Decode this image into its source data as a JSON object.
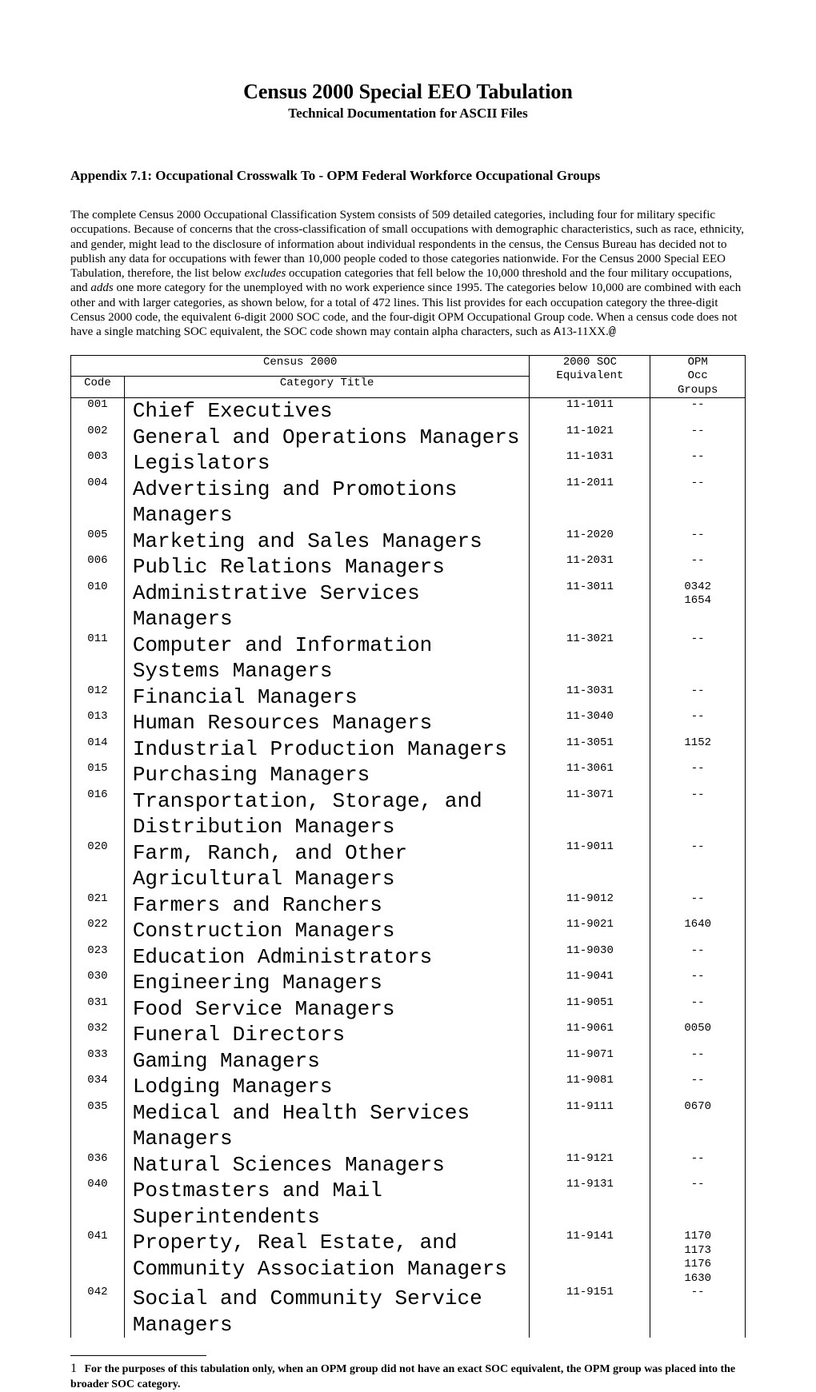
{
  "doc": {
    "title": "Census 2000 Special EEO Tabulation",
    "subtitle": "Technical Documentation for ASCII Files",
    "appendix_heading": "Appendix 7.1:  Occupational Crosswalk To - OPM Federal Workforce Occupational Groups",
    "body_html": "The complete Census 2000 Occupational Classification System consists of 509 detailed categories, including four for military specific occupations. Because of concerns that the cross-classification of small occupations with demographic characteristics, such as race, ethnicity, and gender, might lead to the disclosure of information about individual respondents in the census, the Census Bureau has decided not to publish any data for occupations with fewer than 10,000 people coded to those categories nationwide. For the Census 2000 Special EEO Tabulation, therefore, the list below <span class=\"italic\">excludes</span> occupation categories that fell below the 10,000 threshold and the four military occupations, and <span class=\"italic\">adds</span> one more category for the unemployed with no work experience since 1995. The categories below 10,000 are combined with each other and with larger categories, as shown below, for a total of 472 lines. This list provides for each occupation category the three-digit Census 2000 code, the equivalent 6-digit 2000 SOC code, and the four-digit OPM Occupational Group code. When a census code does not have a single matching SOC equivalent, the SOC code shown may contain alpha characters, such as <span class=\"mono\">A</span>13-11XX.<span class=\"mono\">@</span>",
    "footnote": "For the purposes of this tabulation only, when an OPM group did not have an exact SOC equivalent, the OPM group was placed into the broader SOC category.",
    "footnote_num": "1"
  },
  "table": {
    "head": {
      "census": "Census 2000",
      "soc": "2000 SOC\nEquivalent",
      "opm": "OPM\nOcc\nGroups",
      "code": "Code",
      "category": "Category Title"
    },
    "col_widths": {
      "code": 62,
      "title": 470,
      "soc": 140,
      "opm": 110
    },
    "font_family": "Courier New",
    "font_size_pt": 10.5,
    "border_color": "#000000",
    "rows": [
      {
        "code": "001",
        "title": "Chief Executives",
        "soc": "11-1011",
        "opm": "--"
      },
      {
        "code": "002",
        "title": "General and Operations Managers",
        "soc": "11-1021",
        "opm": "--"
      },
      {
        "code": "003",
        "title": "Legislators",
        "soc": "11-1031",
        "opm": "--"
      },
      {
        "code": "004",
        "title": "Advertising and Promotions Managers",
        "soc": "11-2011",
        "opm": "--"
      },
      {
        "code": "005",
        "title": "Marketing and Sales Managers",
        "soc": "11-2020",
        "opm": "--"
      },
      {
        "code": "006",
        "title": "Public Relations Managers",
        "soc": "11-2031",
        "opm": "--"
      },
      {
        "code": "010",
        "title": "Administrative Services Managers",
        "soc": "11-3011",
        "opm": "0342\n1654"
      },
      {
        "code": "011",
        "title": "Computer and Information Systems Managers",
        "soc": "11-3021",
        "opm": "--"
      },
      {
        "code": "012",
        "title": "Financial Managers",
        "soc": "11-3031",
        "opm": "--"
      },
      {
        "code": "013",
        "title": "Human Resources Managers",
        "soc": "11-3040",
        "opm": "--"
      },
      {
        "code": "014",
        "title": "Industrial Production Managers",
        "soc": "11-3051",
        "opm": "1152"
      },
      {
        "code": "015",
        "title": "Purchasing Managers",
        "soc": "11-3061",
        "opm": "--"
      },
      {
        "code": "016",
        "title": "Transportation, Storage, and Distribution Managers",
        "soc": "11-3071",
        "opm": "--"
      },
      {
        "code": "020",
        "title": "Farm, Ranch, and Other Agricultural Managers",
        "soc": "11-9011",
        "opm": "--"
      },
      {
        "code": "021",
        "title": "Farmers and Ranchers",
        "soc": "11-9012",
        "opm": "--"
      },
      {
        "code": "022",
        "title": "Construction Managers",
        "soc": "11-9021",
        "opm": "1640"
      },
      {
        "code": "023",
        "title": "Education Administrators",
        "soc": "11-9030",
        "opm": "--"
      },
      {
        "code": "030",
        "title": "Engineering Managers",
        "soc": "11-9041",
        "opm": "--"
      },
      {
        "code": "031",
        "title": "Food Service Managers",
        "soc": "11-9051",
        "opm": "--"
      },
      {
        "code": "032",
        "title": "Funeral Directors",
        "soc": "11-9061",
        "opm": "0050"
      },
      {
        "code": "033",
        "title": "Gaming Managers",
        "soc": "11-9071",
        "opm": "--"
      },
      {
        "code": "034",
        "title": "Lodging Managers",
        "soc": "11-9081",
        "opm": "--"
      },
      {
        "code": "035",
        "title": "Medical and Health Services Managers",
        "soc": "11-9111",
        "opm": "0670"
      },
      {
        "code": "036",
        "title": "Natural Sciences Managers",
        "soc": "11-9121",
        "opm": "--"
      },
      {
        "code": "040",
        "title": "Postmasters and Mail Superintendents",
        "soc": "11-9131",
        "opm": "--"
      },
      {
        "code": "041",
        "title": "Property, Real Estate, and Community Association Managers",
        "soc": "11-9141",
        "opm": "1170\n1173\n1176\n1630"
      },
      {
        "code": "042",
        "title": "Social and Community Service Managers",
        "soc": "11-9151",
        "opm": "--"
      }
    ]
  }
}
